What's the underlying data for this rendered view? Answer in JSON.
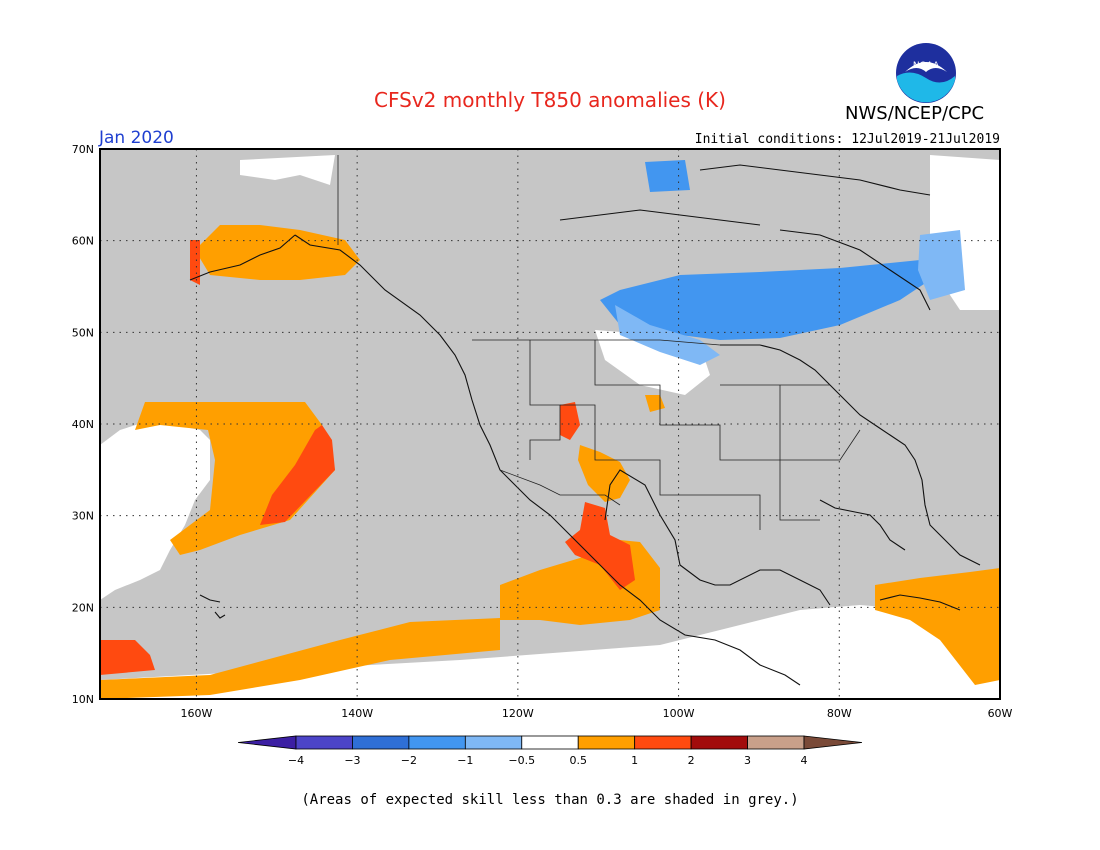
{
  "header": {
    "title": "CFSv2 monthly T850 anomalies (K)",
    "agency": "NWS/NCEP/CPC",
    "logo_text": "NOAA",
    "valid_month": "Jan 2020",
    "initial_conditions": "Initial conditions: 12Jul2019-21Jul2019"
  },
  "map": {
    "lat_labels": [
      "70N",
      "60N",
      "50N",
      "40N",
      "30N",
      "20N",
      "10N"
    ],
    "lon_labels": [
      "160W",
      "140W",
      "120W",
      "100W",
      "80W",
      "60W"
    ],
    "lat_values": [
      70,
      60,
      50,
      40,
      30,
      20,
      10
    ],
    "lon_values": [
      -160,
      -140,
      -120,
      -100,
      -80,
      -60
    ],
    "lon_range": [
      -172,
      -60
    ],
    "lat_range": [
      10,
      70
    ]
  },
  "legend": {
    "bins": [
      {
        "color": "#3c1fa3"
      },
      {
        "color": "#4c44c8"
      },
      {
        "color": "#2f6fd6"
      },
      {
        "color": "#4296f0"
      },
      {
        "color": "#7fb8f5"
      },
      {
        "color": "#ffffff"
      },
      {
        "color": "#ff9f00"
      },
      {
        "color": "#ff4a10"
      },
      {
        "color": "#a20c0c"
      },
      {
        "color": "#c9a08a"
      },
      {
        "color": "#7a4a38"
      }
    ],
    "tick_labels": [
      "−4",
      "−3",
      "−2",
      "−1",
      "−0.5",
      "0.5",
      "1",
      "2",
      "3",
      "4"
    ]
  },
  "colors": {
    "grey": "#c6c6c6",
    "white": "#ffffff",
    "orange": "#ff9f00",
    "red": "#ff4a10",
    "blue": "#4296f0",
    "light_blue": "#7fb8f5"
  },
  "footnote": "(Areas of expected skill less than 0.3 are shaded in grey.)"
}
